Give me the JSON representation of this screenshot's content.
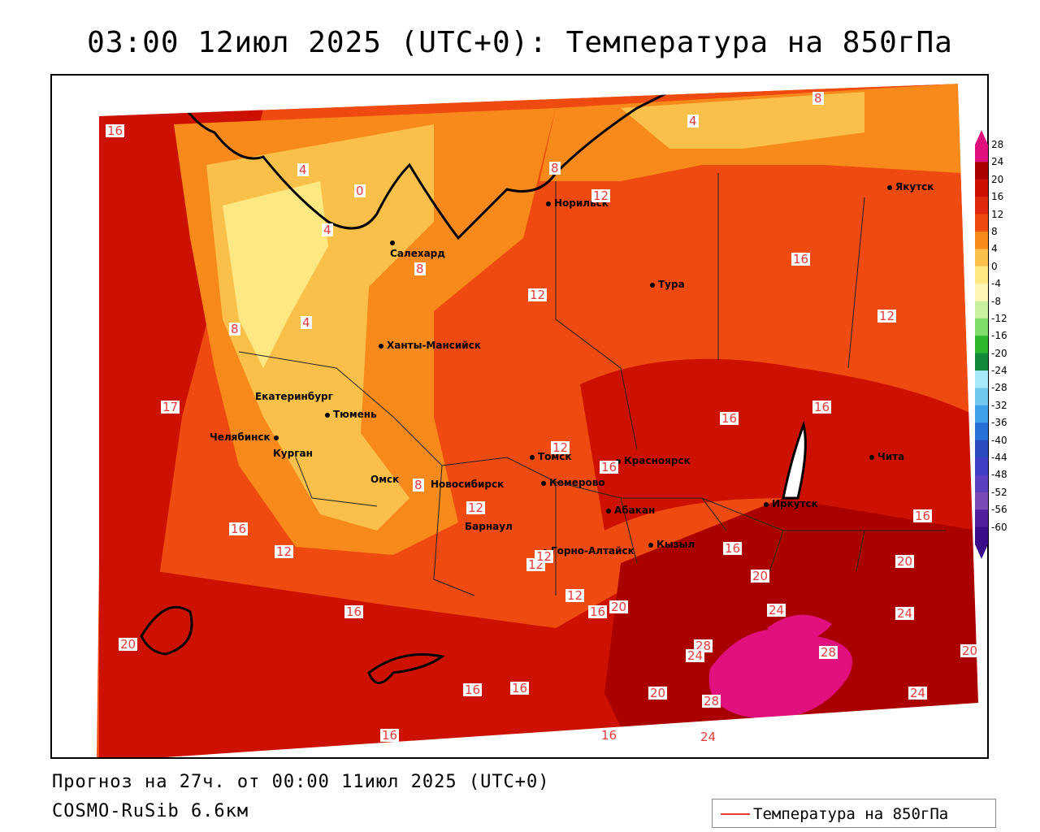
{
  "title": "03:00 12июл 2025 (UTC+0): Температура на 850гПа",
  "footer": {
    "forecast": "Прогноз на 27ч. от 00:00 11июл 2025 (UTC+0)",
    "model": "COSMO-RuSib 6.6км"
  },
  "legend": {
    "label": "Температура на 850гПа",
    "color": "#e83a3a"
  },
  "colorbar": {
    "ticks": [
      "28",
      "24",
      "20",
      "16",
      "12",
      "8",
      "4",
      "0",
      "-4",
      "-8",
      "-12",
      "-16",
      "-20",
      "-24",
      "-28",
      "-32",
      "-36",
      "-40",
      "-44",
      "-48",
      "-52",
      "-56",
      "-60"
    ],
    "colors": [
      "#e0107e",
      "#aa0000",
      "#cc1100",
      "#e02a10",
      "#ef4a10",
      "#f78a1a",
      "#fbc04a",
      "#fde882",
      "#fff6b8",
      "#c8f0a0",
      "#7fdd6a",
      "#2db82d",
      "#108a3a",
      "#a8e8f8",
      "#70c8f0",
      "#3ea0e8",
      "#2770d8",
      "#2a4cc0",
      "#3f3fc8",
      "#5a40c0",
      "#7a4ab8",
      "#5020a0",
      "#3a0c8a"
    ]
  },
  "cities": [
    {
      "name": "Норильск"
    },
    {
      "name": "Якутск"
    },
    {
      "name": "Салехард"
    },
    {
      "name": "Тура"
    },
    {
      "name": "Ханты-Мансийск"
    },
    {
      "name": "Екатеринбург"
    },
    {
      "name": "Тюмень"
    },
    {
      "name": "Челябинск"
    },
    {
      "name": "Курган"
    },
    {
      "name": "Омск"
    },
    {
      "name": "Томск"
    },
    {
      "name": "Красноярск"
    },
    {
      "name": "Новосибирск"
    },
    {
      "name": "Кемерово"
    },
    {
      "name": "Абакан"
    },
    {
      "name": "Барнаул"
    },
    {
      "name": "Иркутск"
    },
    {
      "name": "Чита"
    },
    {
      "name": "Горно-Алтайск"
    },
    {
      "name": "Кызыл"
    }
  ],
  "contour_labels": [
    "16",
    "4",
    "0",
    "8",
    "12",
    "4",
    "8",
    "12",
    "16",
    "4",
    "8",
    "12",
    "8",
    "4",
    "12",
    "16",
    "17",
    "12",
    "16",
    "12",
    "16",
    "16",
    "16",
    "20",
    "16",
    "20",
    "12",
    "12",
    "16",
    "20",
    "20",
    "24",
    "24",
    "16",
    "16",
    "28",
    "24",
    "28",
    "20",
    "20",
    "24",
    "16",
    "16",
    "28",
    "16",
    "24",
    "8",
    "12"
  ]
}
